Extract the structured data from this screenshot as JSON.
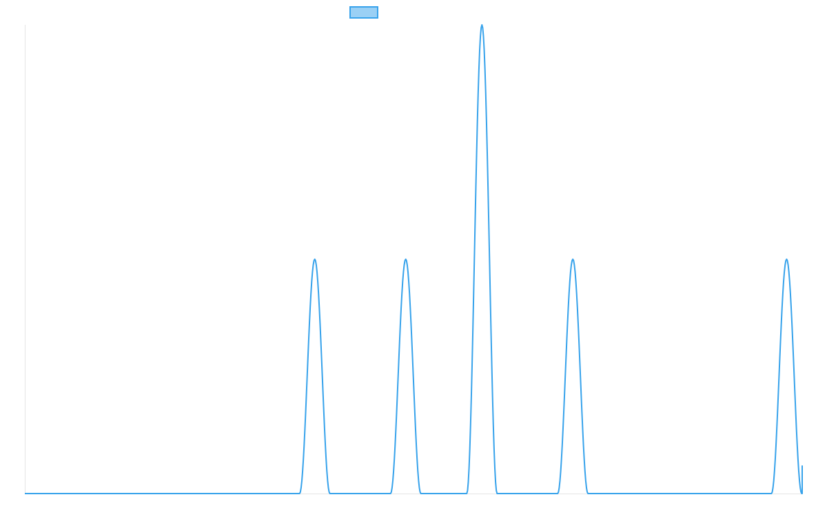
{
  "colors": {
    "line": "#36A2EB",
    "legend_fill": "#9AD0F5",
    "axis": "#E5E5E5"
  },
  "chart_data": {
    "type": "line",
    "title": "",
    "xlabel": "",
    "ylabel": "",
    "legend": {
      "position": "top",
      "labels": [
        ""
      ]
    },
    "grid": false,
    "xlim": [
      0,
      1
    ],
    "ylim": [
      0,
      2
    ],
    "series": [
      {
        "peaks": [
          {
            "x": 0.373,
            "y": 1.0
          },
          {
            "x": 0.49,
            "y": 1.0
          },
          {
            "x": 0.588,
            "y": 2.0
          },
          {
            "x": 0.705,
            "y": 1.0
          },
          {
            "x": 0.98,
            "y": 1.0
          }
        ],
        "baseline": 0
      }
    ]
  }
}
